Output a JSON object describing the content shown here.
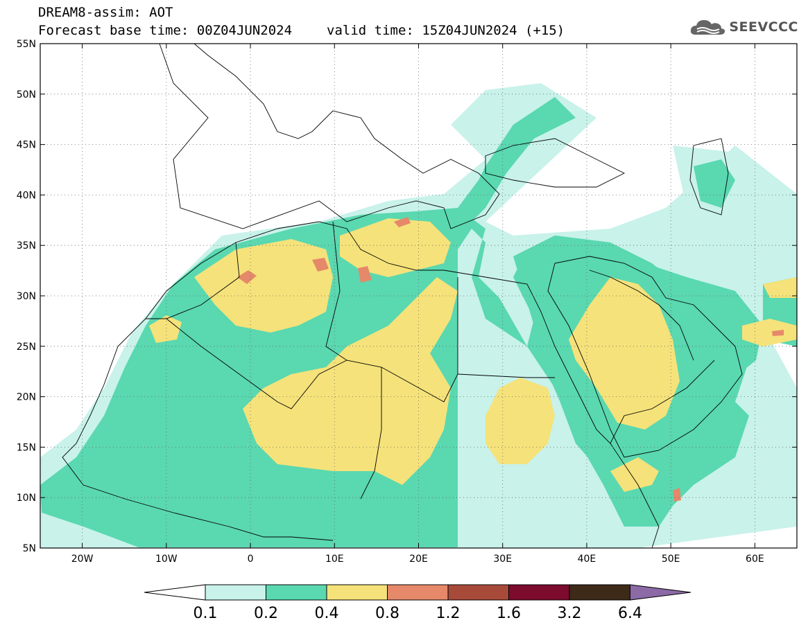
{
  "header": {
    "line1": "DREAM8-assim: AOT",
    "base_time": "Forecast base time: 00Z04JUN2024",
    "valid_time": "valid time: 15Z04JUN2024 (+15)"
  },
  "logo": {
    "text": "SEEVCCC",
    "icon": "cloud-icon"
  },
  "map": {
    "lon_range": [
      -25,
      65
    ],
    "lat_range": [
      5,
      55
    ],
    "lon_ticks": [
      {
        "value": -20,
        "label": "20W"
      },
      {
        "value": -10,
        "label": "10W"
      },
      {
        "value": 0,
        "label": "0"
      },
      {
        "value": 10,
        "label": "10E"
      },
      {
        "value": 20,
        "label": "20E"
      },
      {
        "value": 30,
        "label": "30E"
      },
      {
        "value": 40,
        "label": "40E"
      },
      {
        "value": 50,
        "label": "50E"
      },
      {
        "value": 60,
        "label": "60E"
      }
    ],
    "lat_ticks": [
      {
        "value": 5,
        "label": "5N"
      },
      {
        "value": 10,
        "label": "10N"
      },
      {
        "value": 15,
        "label": "15N"
      },
      {
        "value": 20,
        "label": "20N"
      },
      {
        "value": 25,
        "label": "25N"
      },
      {
        "value": 30,
        "label": "30N"
      },
      {
        "value": 35,
        "label": "35N"
      },
      {
        "value": 40,
        "label": "40N"
      },
      {
        "value": 45,
        "label": "45N"
      },
      {
        "value": 50,
        "label": "50N"
      },
      {
        "value": 55,
        "label": "55N"
      }
    ],
    "grid": "dotted"
  },
  "colorbar": {
    "labels": [
      "0.1",
      "0.2",
      "0.4",
      "0.8",
      "1.2",
      "1.6",
      "3.2",
      "6.4"
    ],
    "colors": [
      "#ffffff",
      "#c8f2ea",
      "#5ad8b0",
      "#f5e27a",
      "#e5896a",
      "#a84a3a",
      "#7c0b2e",
      "#3d2a18",
      "#8c6aa6"
    ]
  }
}
